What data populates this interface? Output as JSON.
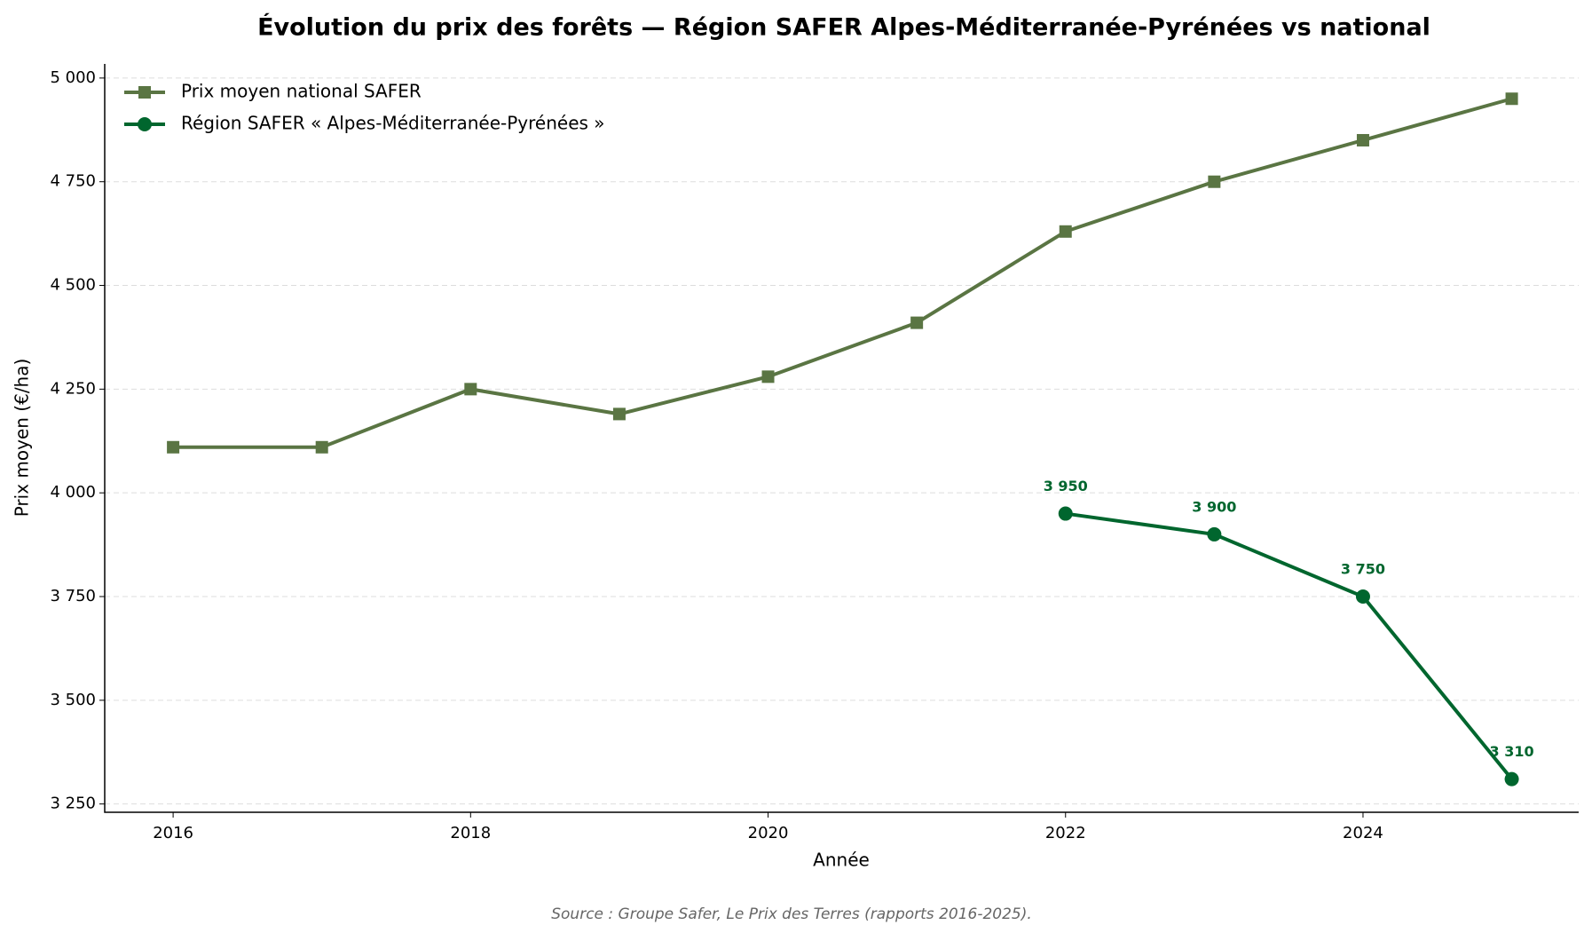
{
  "chart_data": {
    "type": "line",
    "title": "Évolution du prix des forêts — Région SAFER Alpes-Méditerranée-Pyrénées vs national",
    "x_label": "Année",
    "y_label": "Prix moyen (€/ha)",
    "source": "Source : Groupe Safer, Le Prix des Terres (rapports 2016-2025).",
    "x": [
      2016,
      2017,
      2018,
      2019,
      2020,
      2021,
      2022,
      2023,
      2024,
      2025
    ],
    "series": [
      {
        "name": "Prix moyen national SAFER",
        "color": "#5a7543",
        "marker": "square",
        "values": [
          4110,
          4110,
          4250,
          4190,
          4280,
          4410,
          4630,
          4750,
          4850,
          4950
        ]
      },
      {
        "name": "Région SAFER « Alpes-Méditerranée-Pyrénées »",
        "color": "#00662e",
        "marker": "circle",
        "values": [
          null,
          null,
          null,
          null,
          null,
          null,
          3950,
          3900,
          3750,
          3310
        ],
        "value_labels": [
          null,
          null,
          null,
          null,
          null,
          null,
          "3 950",
          "3 900",
          "3 750",
          "3 310"
        ]
      }
    ],
    "xlim": [
      2015.54,
      2025.45
    ],
    "ylim": [
      3230,
      5034
    ],
    "xticks": [
      2016,
      2018,
      2020,
      2022,
      2024
    ],
    "yticks": [
      {
        "value": 3250,
        "label": "3 250"
      },
      {
        "value": 3500,
        "label": "3 500"
      },
      {
        "value": 3750,
        "label": "3 750"
      },
      {
        "value": 4000,
        "label": "4 000"
      },
      {
        "value": 4250,
        "label": "4 250"
      },
      {
        "value": 4500,
        "label": "4 500"
      },
      {
        "value": 4750,
        "label": "4 750"
      },
      {
        "value": 5000,
        "label": "5 000"
      }
    ],
    "grid": true,
    "legend": "upper left"
  }
}
